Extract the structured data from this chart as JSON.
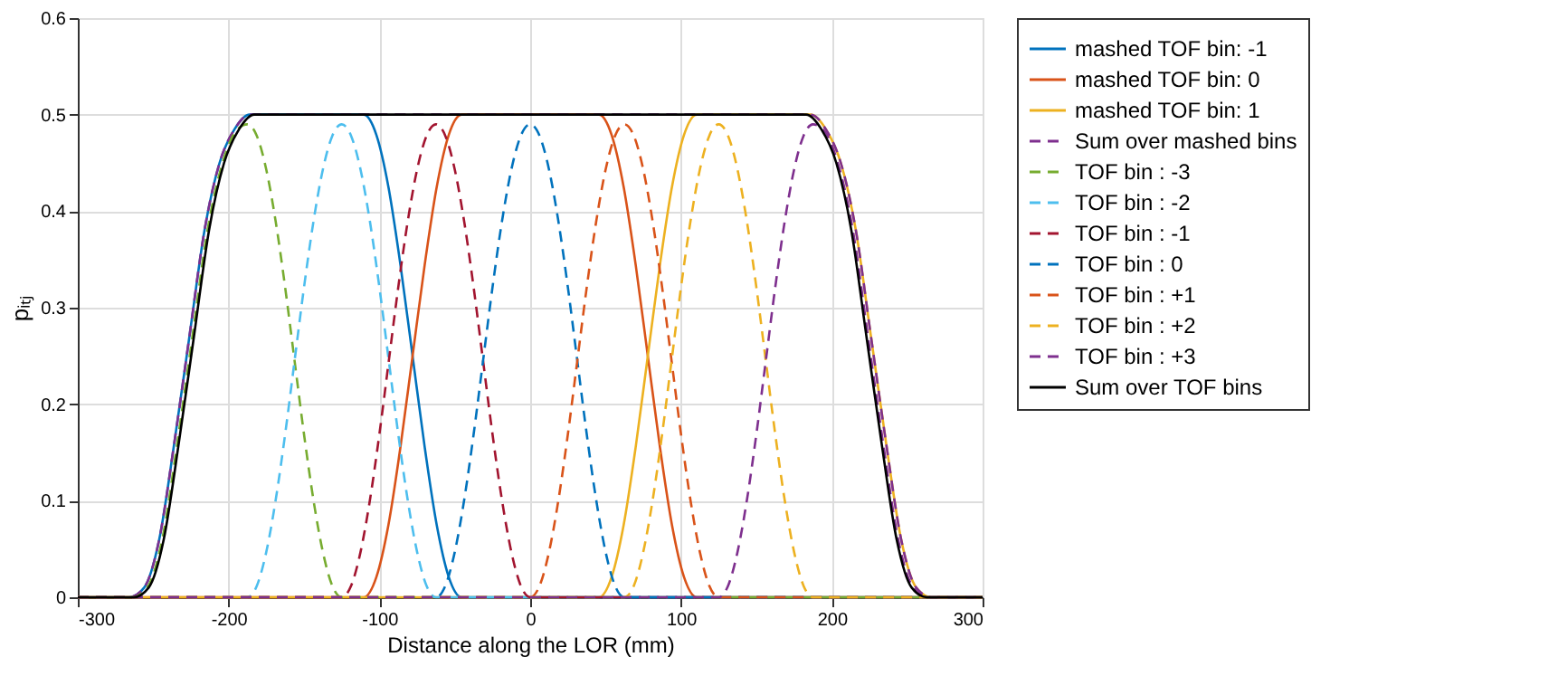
{
  "chart_data": {
    "type": "line",
    "xlabel": "Distance along the LOR (mm)",
    "ylabel": "pᵢₜⱼ",
    "xlim": [
      -300,
      300
    ],
    "ylim": [
      0,
      0.6
    ],
    "xticks": [
      -300,
      -200,
      -100,
      0,
      100,
      200,
      300
    ],
    "yticks": [
      0,
      0.1,
      0.2,
      0.3,
      0.4,
      0.5,
      0.6
    ],
    "grid": true,
    "legend": "right",
    "marker": "none",
    "series": [
      {
        "name": "mashed TOF bin: -1",
        "color": "#0072bd",
        "line_style": "solid",
        "x": [
          -300,
          -266,
          -256,
          -246,
          -236,
          -226,
          -216,
          -206,
          -196,
          -186,
          -110.5,
          -102,
          -94,
          -86,
          -78,
          -70,
          -62,
          -54,
          -45.5,
          300
        ],
        "values": [
          0,
          0,
          0.01,
          0.06,
          0.16,
          0.27,
          0.38,
          0.45,
          0.485,
          0.5,
          0.5,
          0.479,
          0.425,
          0.344,
          0.25,
          0.156,
          0.075,
          0.021,
          0,
          0
        ]
      },
      {
        "name": "mashed TOF bin: 0",
        "color": "#d95319",
        "line_style": "solid",
        "x": [
          -300,
          -110.5,
          -102,
          -94,
          -86,
          -78,
          -70,
          -62,
          -54,
          -45.5,
          45.5,
          54,
          62,
          70,
          78,
          86,
          94,
          102,
          110.5,
          300
        ],
        "values": [
          0,
          0,
          0.021,
          0.075,
          0.156,
          0.25,
          0.344,
          0.425,
          0.479,
          0.5,
          0.5,
          0.479,
          0.425,
          0.344,
          0.25,
          0.156,
          0.075,
          0.021,
          0,
          0
        ]
      },
      {
        "name": "mashed TOF bin: 1",
        "color": "#edb120",
        "line_style": "solid",
        "x": [
          -300,
          45.5,
          54,
          62,
          70,
          78,
          86,
          94,
          102,
          110.5,
          186,
          196,
          206,
          216,
          226,
          236,
          246,
          256,
          266,
          300
        ],
        "values": [
          0,
          0,
          0.021,
          0.075,
          0.156,
          0.25,
          0.344,
          0.425,
          0.479,
          0.5,
          0.5,
          0.485,
          0.45,
          0.38,
          0.27,
          0.16,
          0.06,
          0.01,
          0,
          0
        ]
      },
      {
        "name": "Sum over mashed bins",
        "color": "#7e2f8e",
        "line_style": "dashed",
        "x": [
          -300,
          -266,
          -256,
          -246,
          -236,
          -226,
          -216,
          -206,
          -196,
          -186,
          186,
          196,
          206,
          216,
          226,
          236,
          246,
          256,
          266,
          300
        ],
        "values": [
          0,
          0,
          0.01,
          0.06,
          0.16,
          0.27,
          0.38,
          0.45,
          0.485,
          0.5,
          0.5,
          0.485,
          0.45,
          0.38,
          0.27,
          0.16,
          0.06,
          0.01,
          0,
          0
        ]
      },
      {
        "name": "TOF bin : -3",
        "color": "#77ac30",
        "line_style": "dashed",
        "x": [
          -300,
          -264,
          -254,
          -244,
          -234,
          -224,
          -214,
          -204,
          -194,
          -187.5,
          -181.25,
          -175,
          -168.75,
          -162.5,
          -156.25,
          -150,
          -143.75,
          -137.5,
          -131.25,
          -125,
          300
        ],
        "values": [
          0,
          0,
          0.01,
          0.06,
          0.16,
          0.27,
          0.38,
          0.45,
          0.485,
          0.49,
          0.478,
          0.443,
          0.389,
          0.321,
          0.245,
          0.169,
          0.101,
          0.047,
          0.012,
          0,
          0
        ]
      },
      {
        "name": "TOF bin : -2",
        "color": "#4dbeee",
        "line_style": "dashed",
        "x": [
          -300,
          -187.5,
          -181.25,
          -175,
          -168.75,
          -162.5,
          -156.25,
          -150,
          -143.75,
          -137.5,
          -131.25,
          -125,
          -118.75,
          -112.5,
          -106.25,
          -100,
          -93.75,
          -87.5,
          -81.25,
          -75,
          -68.75,
          -62.5,
          300
        ],
        "values": [
          0,
          0,
          0.012,
          0.047,
          0.101,
          0.169,
          0.245,
          0.321,
          0.389,
          0.443,
          0.478,
          0.49,
          0.478,
          0.443,
          0.389,
          0.321,
          0.245,
          0.169,
          0.101,
          0.047,
          0.012,
          0,
          0
        ]
      },
      {
        "name": "TOF bin : -1",
        "color": "#a2142f",
        "line_style": "dashed",
        "x": [
          -300,
          -125,
          -118.75,
          -112.5,
          -106.25,
          -100,
          -93.75,
          -87.5,
          -81.25,
          -75,
          -68.75,
          -62.5,
          -56.25,
          -50,
          -43.75,
          -37.5,
          -31.25,
          -25,
          -18.75,
          -12.5,
          -6.25,
          0,
          300
        ],
        "values": [
          0,
          0,
          0.012,
          0.047,
          0.101,
          0.169,
          0.245,
          0.321,
          0.389,
          0.443,
          0.478,
          0.49,
          0.478,
          0.443,
          0.389,
          0.321,
          0.245,
          0.169,
          0.101,
          0.047,
          0.012,
          0,
          0
        ]
      },
      {
        "name": "TOF bin : 0",
        "color": "#0072bd",
        "line_style": "dashed",
        "x": [
          -300,
          -62.5,
          -56.25,
          -50,
          -43.75,
          -37.5,
          -31.25,
          -25,
          -18.75,
          -12.5,
          -6.25,
          0,
          6.25,
          12.5,
          18.75,
          25,
          31.25,
          37.5,
          43.75,
          50,
          56.25,
          62.5,
          300
        ],
        "values": [
          0,
          0,
          0.012,
          0.047,
          0.101,
          0.169,
          0.245,
          0.321,
          0.389,
          0.443,
          0.478,
          0.49,
          0.478,
          0.443,
          0.389,
          0.321,
          0.245,
          0.169,
          0.101,
          0.047,
          0.012,
          0,
          0
        ]
      },
      {
        "name": "TOF bin : +1",
        "color": "#d95319",
        "line_style": "dashed",
        "x": [
          -300,
          0,
          6.25,
          12.5,
          18.75,
          25,
          31.25,
          37.5,
          43.75,
          50,
          56.25,
          62.5,
          68.75,
          75,
          81.25,
          87.5,
          93.75,
          100,
          106.25,
          112.5,
          118.75,
          125,
          300
        ],
        "values": [
          0,
          0,
          0.012,
          0.047,
          0.101,
          0.169,
          0.245,
          0.321,
          0.389,
          0.443,
          0.478,
          0.49,
          0.478,
          0.443,
          0.389,
          0.321,
          0.245,
          0.169,
          0.101,
          0.047,
          0.012,
          0,
          0
        ]
      },
      {
        "name": "TOF bin : +2",
        "color": "#edb120",
        "line_style": "dashed",
        "x": [
          -300,
          62.5,
          68.75,
          75,
          81.25,
          87.5,
          93.75,
          100,
          106.25,
          112.5,
          118.75,
          125,
          131.25,
          137.5,
          143.75,
          150,
          156.25,
          162.5,
          168.75,
          175,
          181.25,
          187.5,
          300
        ],
        "values": [
          0,
          0,
          0.012,
          0.047,
          0.101,
          0.169,
          0.245,
          0.321,
          0.389,
          0.443,
          0.478,
          0.49,
          0.478,
          0.443,
          0.389,
          0.321,
          0.245,
          0.169,
          0.101,
          0.047,
          0.012,
          0,
          0
        ]
      },
      {
        "name": "TOF bin : +3",
        "color": "#7e2f8e",
        "line_style": "dashed",
        "x": [
          -300,
          125,
          131.25,
          137.5,
          143.75,
          150,
          156.25,
          162.5,
          168.75,
          175,
          181.25,
          187.5,
          194,
          204,
          214,
          224,
          234,
          244,
          254,
          264,
          300
        ],
        "values": [
          0,
          0,
          0.012,
          0.047,
          0.101,
          0.169,
          0.245,
          0.321,
          0.389,
          0.443,
          0.478,
          0.49,
          0.485,
          0.45,
          0.38,
          0.27,
          0.16,
          0.06,
          0.01,
          0,
          0
        ]
      },
      {
        "name": "Sum over TOF bins",
        "color": "#000000",
        "line_style": "solid",
        "x": [
          -300,
          -263,
          -253,
          -243,
          -233,
          -223,
          -213,
          -203,
          -193,
          -183,
          183,
          193,
          203,
          213,
          223,
          233,
          243,
          253,
          263,
          300
        ],
        "values": [
          0,
          0,
          0.01,
          0.06,
          0.16,
          0.27,
          0.38,
          0.45,
          0.485,
          0.5,
          0.5,
          0.485,
          0.45,
          0.38,
          0.27,
          0.16,
          0.06,
          0.01,
          0,
          0
        ]
      }
    ]
  }
}
